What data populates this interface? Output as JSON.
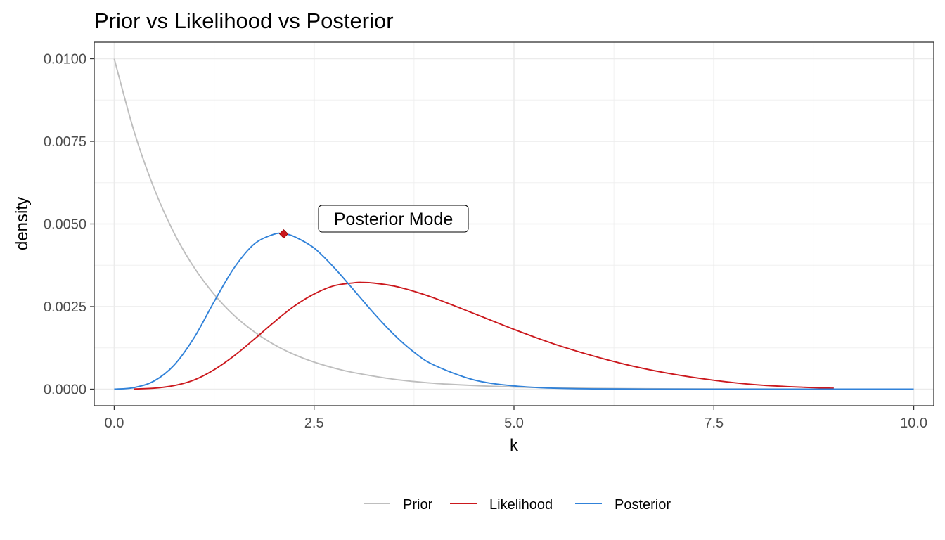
{
  "chart_data": {
    "type": "line",
    "title": "Prior vs Likelihood vs Posterior",
    "xlabel": "k",
    "ylabel": "density",
    "xlim": [
      -0.25,
      10.25
    ],
    "ylim": [
      -0.0005,
      0.0105
    ],
    "x_ticks": [
      0.0,
      2.5,
      5.0,
      7.5,
      10.0
    ],
    "x_tick_labels": [
      "0.0",
      "2.5",
      "5.0",
      "7.5",
      "10.0"
    ],
    "y_ticks": [
      0.0,
      0.0025,
      0.005,
      0.0075,
      0.01
    ],
    "y_tick_labels": [
      "0.0000",
      "0.0025",
      "0.0050",
      "0.0075",
      "0.0100"
    ],
    "grid": true,
    "legend_position": "bottom",
    "series": [
      {
        "name": "Prior",
        "color": "#bebebe",
        "x": [
          0,
          0.25,
          0.5,
          0.75,
          1.0,
          1.25,
          1.5,
          1.75,
          2.0,
          2.25,
          2.5,
          2.75,
          3.0,
          3.5,
          4.0,
          4.5,
          5.0,
          5.5,
          6.0,
          7.0,
          8.0,
          9.0,
          10.0
        ],
        "y": [
          0.01,
          0.00779,
          0.00607,
          0.00472,
          0.00368,
          0.00287,
          0.00223,
          0.00174,
          0.00135,
          0.00105,
          0.00082,
          0.00064,
          0.0005,
          0.0003,
          0.00018,
          0.00011,
          6.7e-05,
          4.1e-05,
          2.5e-05,
          9e-06,
          3e-06,
          1e-06,
          0.0
        ]
      },
      {
        "name": "Likelihood",
        "color": "#cb181d",
        "x": [
          0.25,
          0.5,
          0.75,
          1.0,
          1.25,
          1.5,
          1.75,
          2.0,
          2.25,
          2.5,
          2.75,
          3.0,
          3.1,
          3.25,
          3.5,
          3.75,
          4.0,
          4.5,
          5.0,
          5.5,
          6.0,
          6.5,
          7.0,
          7.5,
          8.0,
          8.5,
          9.0
        ],
        "y": [
          5e-06,
          3e-05,
          0.00011,
          0.00028,
          0.00059,
          0.00101,
          0.00151,
          0.00203,
          0.00251,
          0.00288,
          0.00313,
          0.00322,
          0.00323,
          0.00321,
          0.00312,
          0.00296,
          0.00276,
          0.00229,
          0.00181,
          0.00137,
          0.001,
          0.00069,
          0.00045,
          0.00027,
          0.00014,
          7e-05,
          3e-05
        ]
      },
      {
        "name": "Posterior",
        "color": "#3182d9",
        "x": [
          0.0,
          0.25,
          0.5,
          0.75,
          1.0,
          1.25,
          1.5,
          1.75,
          2.0,
          2.12,
          2.25,
          2.5,
          2.75,
          3.0,
          3.25,
          3.5,
          3.75,
          4.0,
          4.5,
          5.0,
          5.5,
          6.0,
          7.0,
          8.0,
          9.0,
          10.0
        ],
        "y": [
          0.0,
          5e-05,
          0.00025,
          0.00073,
          0.00156,
          0.00265,
          0.00367,
          0.00439,
          0.00469,
          0.0047,
          0.00462,
          0.00427,
          0.00368,
          0.00299,
          0.00229,
          0.00165,
          0.00112,
          0.00073,
          0.00028,
          0.0001,
          3e-05,
          1e-05,
          0.0,
          0.0,
          0.0,
          0.0
        ]
      }
    ],
    "annotation": {
      "label": "Posterior Mode",
      "point_x": 2.12,
      "point_y": 0.0047,
      "point_color": "#cb181d"
    }
  }
}
